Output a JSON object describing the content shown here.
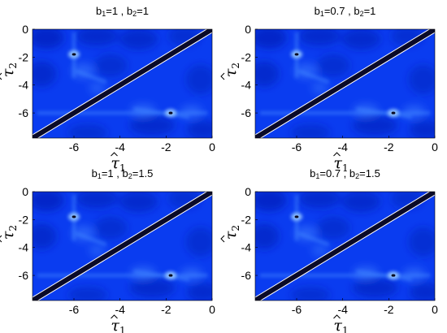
{
  "chart_data": [
    {
      "type": "heatmap",
      "title_parts": [
        "b",
        "1",
        "=1 , b",
        "2",
        "=1"
      ],
      "xlabel": {
        "sym": "τ",
        "sub": "1"
      },
      "ylabel": {
        "sym": "τ",
        "sub": "2"
      },
      "xlim": [
        -7.8,
        0
      ],
      "ylim": [
        -7.8,
        0
      ],
      "xticks": [
        -6,
        -4,
        -2,
        0
      ],
      "yticks": [
        0,
        -2,
        -4,
        -6
      ],
      "grid": false,
      "diagonal_band": {
        "from": [
          -7.8,
          -7.8
        ],
        "to": [
          0,
          0
        ]
      },
      "peaks": [
        {
          "x": -6.0,
          "y": -1.8
        },
        {
          "x": -1.8,
          "y": -6.0
        }
      ]
    },
    {
      "type": "heatmap",
      "title_parts": [
        "b",
        "1",
        "=0.7 , b",
        "2",
        "=1"
      ],
      "xlabel": {
        "sym": "τ",
        "sub": "1"
      },
      "ylabel": {
        "sym": "τ",
        "sub": "2"
      },
      "xlim": [
        -7.8,
        0
      ],
      "ylim": [
        -7.8,
        0
      ],
      "xticks": [
        -6,
        -4,
        -2,
        0
      ],
      "yticks": [
        0,
        -2,
        -4,
        -6
      ],
      "grid": false,
      "diagonal_band": {
        "from": [
          -7.8,
          -7.8
        ],
        "to": [
          0,
          0
        ]
      },
      "peaks": [
        {
          "x": -6.0,
          "y": -1.8
        },
        {
          "x": -1.8,
          "y": -6.0
        }
      ]
    },
    {
      "type": "heatmap",
      "title_parts": [
        "b",
        "1",
        "=1 , b",
        "2",
        "=1.5"
      ],
      "xlabel": {
        "sym": "τ",
        "sub": "1"
      },
      "ylabel": {
        "sym": "τ",
        "sub": "2"
      },
      "xlim": [
        -7.8,
        0
      ],
      "ylim": [
        -7.8,
        0
      ],
      "xticks": [
        -6,
        -4,
        -2,
        0
      ],
      "yticks": [
        0,
        -2,
        -4,
        -6
      ],
      "grid": false,
      "diagonal_band": {
        "from": [
          -7.8,
          -7.8
        ],
        "to": [
          0,
          0
        ]
      },
      "peaks": [
        {
          "x": -6.0,
          "y": -1.8
        },
        {
          "x": -1.8,
          "y": -6.0
        }
      ]
    },
    {
      "type": "heatmap",
      "title_parts": [
        "b",
        "1",
        "=0.7 , b",
        "2",
        "=1.5"
      ],
      "xlabel": {
        "sym": "τ",
        "sub": "1"
      },
      "ylabel": {
        "sym": "τ",
        "sub": "2"
      },
      "xlim": [
        -7.8,
        0
      ],
      "ylim": [
        -7.8,
        0
      ],
      "xticks": [
        -6,
        -4,
        -2,
        0
      ],
      "yticks": [
        0,
        -2,
        -4,
        -6
      ],
      "grid": false,
      "diagonal_band": {
        "from": [
          -7.8,
          -7.8
        ],
        "to": [
          0,
          0
        ]
      },
      "peaks": [
        {
          "x": -6.0,
          "y": -1.8
        },
        {
          "x": -1.8,
          "y": -6.0
        }
      ]
    }
  ],
  "colors": {
    "background_field": "#0a3cf0",
    "dark_field": "#0620b8",
    "ridge": "#3f82ff",
    "peak_glow": "#9fd0ff",
    "peak_core": "#0a0a20",
    "diagonal_band": "#0a0a28",
    "diagonal_edge": "#ffffff"
  }
}
